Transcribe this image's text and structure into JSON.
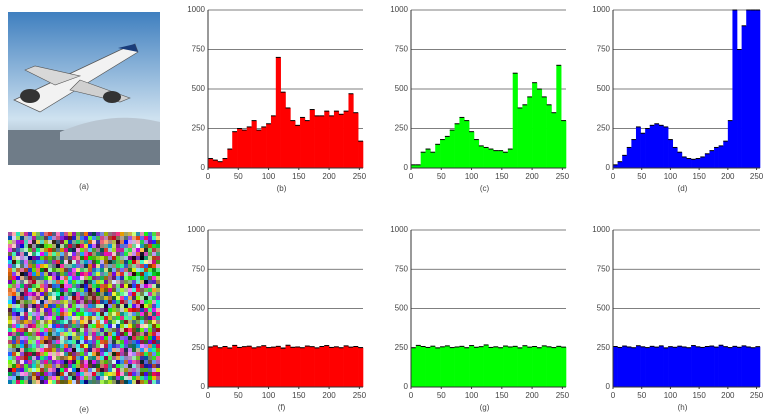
{
  "images": [
    {
      "label": "(a)"
    },
    {
      "label": "(e)"
    }
  ],
  "chart_data": [
    {
      "type": "histogram",
      "label": "(b)",
      "color": "#ff0000",
      "bins": [
        0,
        8,
        16,
        24,
        32,
        40,
        48,
        56,
        64,
        72,
        80,
        88,
        96,
        104,
        112,
        120,
        128,
        136,
        144,
        152,
        160,
        168,
        176,
        184,
        192,
        200,
        208,
        216,
        224,
        232,
        240,
        248,
        256
      ],
      "values": [
        60,
        50,
        40,
        60,
        120,
        230,
        250,
        240,
        260,
        300,
        240,
        260,
        280,
        330,
        700,
        480,
        380,
        300,
        270,
        320,
        300,
        370,
        330,
        330,
        360,
        330,
        360,
        340,
        360,
        470,
        350,
        170
      ],
      "xlim": [
        0,
        256
      ],
      "ylim": [
        0,
        1000
      ],
      "xticks": [
        0,
        50,
        100,
        150,
        200,
        250
      ],
      "yticks": [
        0,
        250,
        500,
        750,
        1000
      ],
      "grid": true
    },
    {
      "type": "histogram",
      "label": "(c)",
      "color": "#00ff00",
      "bins": [
        0,
        8,
        16,
        24,
        32,
        40,
        48,
        56,
        64,
        72,
        80,
        88,
        96,
        104,
        112,
        120,
        128,
        136,
        144,
        152,
        160,
        168,
        176,
        184,
        192,
        200,
        208,
        216,
        224,
        232,
        240,
        248,
        256
      ],
      "values": [
        20,
        20,
        100,
        120,
        100,
        150,
        180,
        200,
        240,
        280,
        320,
        300,
        230,
        180,
        140,
        130,
        120,
        110,
        110,
        100,
        120,
        600,
        380,
        400,
        450,
        540,
        500,
        450,
        400,
        350,
        650,
        300
      ],
      "xlim": [
        0,
        256
      ],
      "ylim": [
        0,
        1000
      ],
      "xticks": [
        0,
        50,
        100,
        150,
        200,
        250
      ],
      "yticks": [
        0,
        250,
        500,
        750,
        1000
      ],
      "grid": true
    },
    {
      "type": "histogram",
      "label": "(d)",
      "color": "#0000ff",
      "bins": [
        0,
        8,
        16,
        24,
        32,
        40,
        48,
        56,
        64,
        72,
        80,
        88,
        96,
        104,
        112,
        120,
        128,
        136,
        144,
        152,
        160,
        168,
        176,
        184,
        192,
        200,
        208,
        216,
        224,
        232,
        240,
        248,
        256
      ],
      "values": [
        20,
        40,
        80,
        130,
        180,
        260,
        220,
        250,
        270,
        280,
        270,
        260,
        180,
        130,
        100,
        70,
        60,
        55,
        60,
        70,
        90,
        110,
        130,
        140,
        170,
        300,
        1000,
        750,
        900,
        1000,
        1000,
        1000
      ],
      "xlim": [
        0,
        256
      ],
      "ylim": [
        0,
        1000
      ],
      "xticks": [
        0,
        50,
        100,
        150,
        200,
        250
      ],
      "yticks": [
        0,
        250,
        500,
        750,
        1000
      ],
      "grid": true
    },
    {
      "type": "histogram",
      "label": "(f)",
      "color": "#ff0000",
      "bins": [
        0,
        8,
        16,
        24,
        32,
        40,
        48,
        56,
        64,
        72,
        80,
        88,
        96,
        104,
        112,
        120,
        128,
        136,
        144,
        152,
        160,
        168,
        176,
        184,
        192,
        200,
        208,
        216,
        224,
        232,
        240,
        248,
        256
      ],
      "values": [
        255,
        262,
        250,
        258,
        248,
        265,
        252,
        257,
        260,
        249,
        256,
        263,
        251,
        254,
        259,
        247,
        266,
        253,
        255,
        250,
        261,
        257,
        249,
        258,
        264,
        252,
        256,
        250,
        262,
        254,
        258,
        251
      ],
      "xlim": [
        0,
        256
      ],
      "ylim": [
        0,
        1000
      ],
      "xticks": [
        0,
        50,
        100,
        150,
        200,
        250
      ],
      "yticks": [
        0,
        250,
        500,
        750,
        1000
      ],
      "grid": true
    },
    {
      "type": "histogram",
      "label": "(g)",
      "color": "#00ff00",
      "bins": [
        0,
        8,
        16,
        24,
        32,
        40,
        48,
        56,
        64,
        72,
        80,
        88,
        96,
        104,
        112,
        120,
        128,
        136,
        144,
        152,
        160,
        168,
        176,
        184,
        192,
        200,
        208,
        216,
        224,
        232,
        240,
        248,
        256
      ],
      "values": [
        250,
        265,
        258,
        252,
        260,
        249,
        256,
        262,
        251,
        255,
        259,
        250,
        264,
        253,
        257,
        268,
        252,
        256,
        250,
        261,
        255,
        259,
        249,
        263,
        254,
        258,
        250,
        262,
        256,
        251,
        259,
        254
      ],
      "xlim": [
        0,
        256
      ],
      "ylim": [
        0,
        1000
      ],
      "xticks": [
        0,
        50,
        100,
        150,
        200,
        250
      ],
      "yticks": [
        0,
        250,
        500,
        750,
        1000
      ],
      "grid": true
    },
    {
      "type": "histogram",
      "label": "(h)",
      "color": "#0000ff",
      "bins": [
        0,
        8,
        16,
        24,
        32,
        40,
        48,
        56,
        64,
        72,
        80,
        88,
        96,
        104,
        112,
        120,
        128,
        136,
        144,
        152,
        160,
        168,
        176,
        184,
        192,
        200,
        208,
        216,
        224,
        232,
        240,
        248,
        256
      ],
      "values": [
        258,
        252,
        261,
        255,
        250,
        263,
        256,
        251,
        259,
        254,
        262,
        249,
        257,
        253,
        260,
        255,
        250,
        264,
        256,
        252,
        258,
        261,
        254,
        266,
        257,
        251,
        259,
        253,
        262,
        255,
        250,
        257
      ],
      "xlim": [
        0,
        256
      ],
      "ylim": [
        0,
        1000
      ],
      "xticks": [
        0,
        50,
        100,
        150,
        200,
        250
      ],
      "yticks": [
        0,
        250,
        500,
        750,
        1000
      ],
      "grid": true
    }
  ]
}
